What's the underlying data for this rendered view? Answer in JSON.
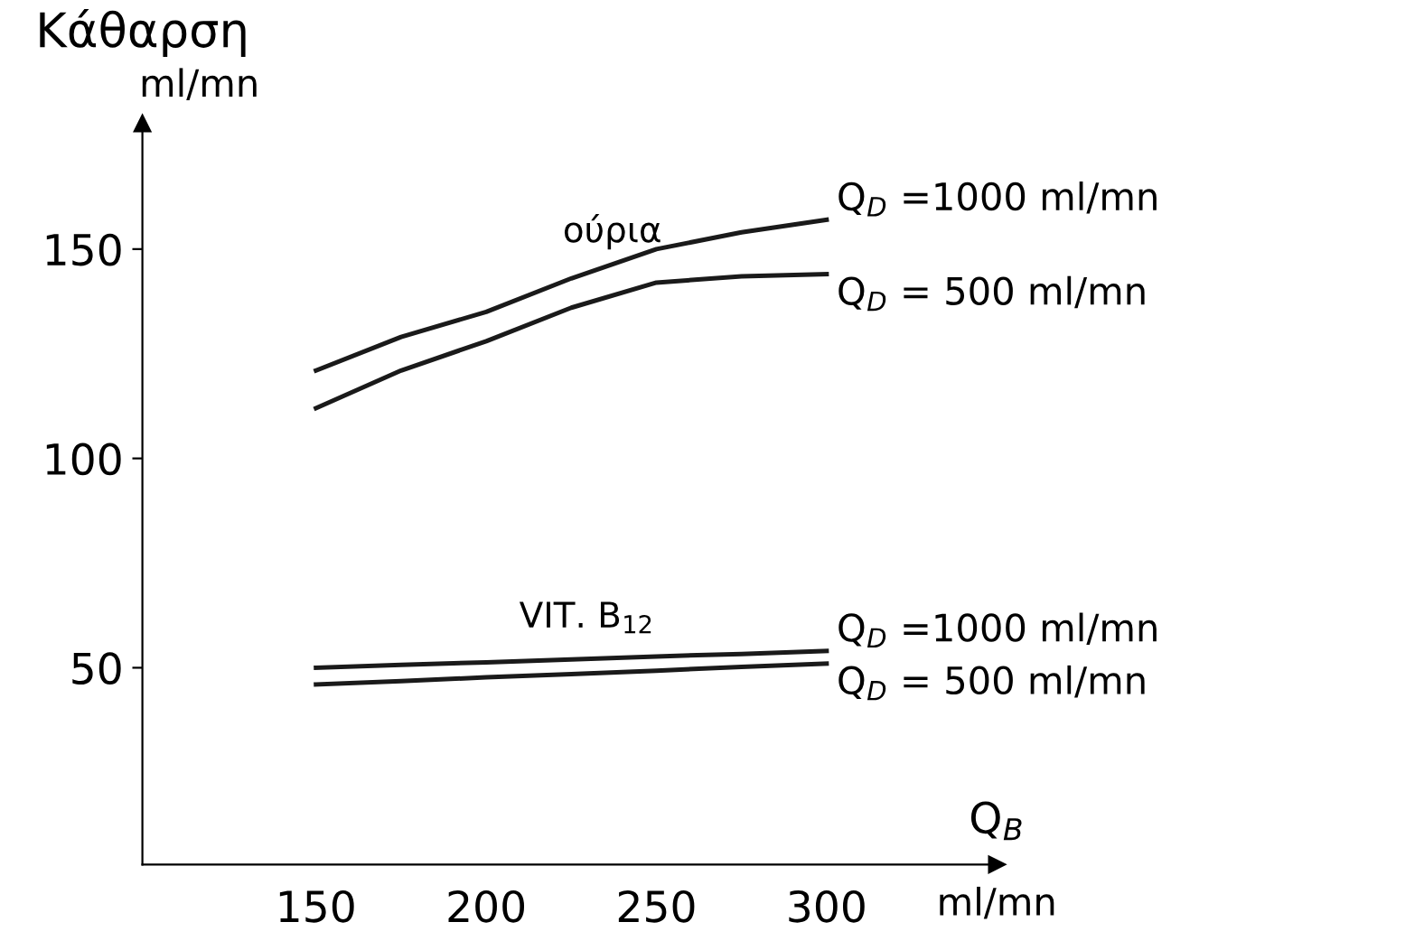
{
  "chart_data": {
    "type": "line",
    "ylabel": "Κάθαρση\nml/mn",
    "xlabel": "Q$_{B}$\nml/mn",
    "x": [
      150,
      175,
      200,
      225,
      250,
      275,
      300
    ],
    "series": [
      {
        "name": "Q$_{D}$ =1000 ml/mn",
        "color": "#1a1a1a",
        "values": [
          121,
          129,
          135,
          143,
          150,
          154,
          157
        ]
      },
      {
        "name": "Q$_{D}$ = 500 ml/mn",
        "color": "#1a1a1a",
        "values": [
          112,
          121,
          128,
          136,
          142,
          143.5,
          144
        ]
      },
      {
        "name": "Q$_{D}$ =1000 ml/mn",
        "color": "#1a1a1a",
        "values": [
          50,
          50.7,
          51.3,
          52,
          52.7,
          53.3,
          54
        ]
      },
      {
        "name": "Q$_{D}$ = 500 ml/mn",
        "color": "#1a1a1a",
        "values": [
          46,
          46.8,
          47.7,
          48.5,
          49.3,
          50.2,
          51
        ]
      }
    ],
    "annotations": [
      "ούρια",
      "VIT. B$_{12}$"
    ],
    "xlim": [
      99,
      350
    ],
    "ylim": [
      3,
      180
    ],
    "xticks": [
      150,
      200,
      250,
      300
    ],
    "yticks": [
      50,
      100,
      150
    ],
    "legend": false,
    "grid": false,
    "marker": "none",
    "line_style": "solid"
  }
}
